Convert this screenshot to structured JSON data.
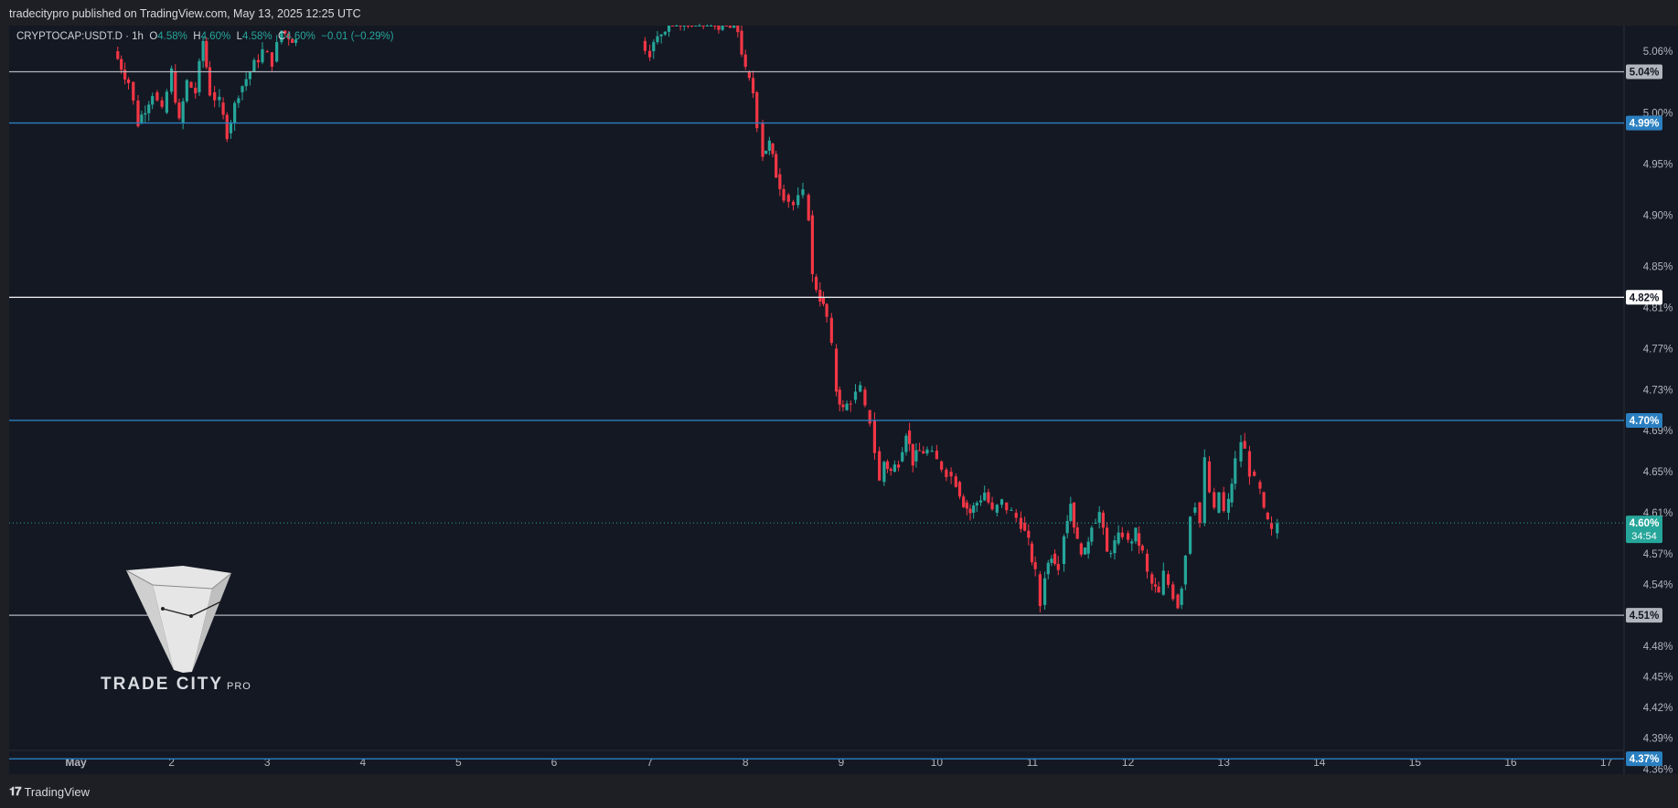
{
  "header": {
    "published": "tradecitypro published on TradingView.com, May 13, 2025 12:25 UTC"
  },
  "symbol_bar": {
    "symbol": "CRYPTOCAP:USDT.D",
    "interval": "1h",
    "o_label": "O",
    "o_value": "4.58%",
    "h_label": "H",
    "h_value": "4.60%",
    "l_label": "L",
    "l_value": "4.58%",
    "c_label": "C",
    "c_value": "4.60%",
    "change": "−0.01 (−0.29%)"
  },
  "watermark": {
    "name": "TRADE CITY",
    "suffix": "PRO"
  },
  "footer": {
    "brand": "TradingView"
  },
  "colors": {
    "background": "#141823",
    "up": "#26a69a",
    "down": "#f23645",
    "blue_line": "#2a7fc0",
    "white_line": "#e6e6e6",
    "gray_line": "#b2b5be"
  },
  "chart_data": {
    "type": "candlestick",
    "ylim": [
      4.355,
      5.085
    ],
    "y_ticks": [
      {
        "v": 5.06,
        "label": "5.06%"
      },
      {
        "v": 5.0,
        "label": "5.00%"
      },
      {
        "v": 4.95,
        "label": "4.95%"
      },
      {
        "v": 4.9,
        "label": "4.90%"
      },
      {
        "v": 4.85,
        "label": "4.85%"
      },
      {
        "v": 4.81,
        "label": "4.81%"
      },
      {
        "v": 4.77,
        "label": "4.77%"
      },
      {
        "v": 4.73,
        "label": "4.73%"
      },
      {
        "v": 4.69,
        "label": "4.69%"
      },
      {
        "v": 4.65,
        "label": "4.65%"
      },
      {
        "v": 4.61,
        "label": "4.61%"
      },
      {
        "v": 4.57,
        "label": "4.57%"
      },
      {
        "v": 4.54,
        "label": "4.54%"
      },
      {
        "v": 4.48,
        "label": "4.48%"
      },
      {
        "v": 4.45,
        "label": "4.45%"
      },
      {
        "v": 4.42,
        "label": "4.42%"
      },
      {
        "v": 4.39,
        "label": "4.39%"
      },
      {
        "v": 4.36,
        "label": "4.36%"
      }
    ],
    "x_ticks": [
      "May",
      "2",
      "3",
      "4",
      "5",
      "6",
      "7",
      "8",
      "9",
      "10",
      "11",
      "12",
      "13",
      "14",
      "15",
      "16",
      "17"
    ],
    "horizontal_levels": [
      {
        "value": 5.04,
        "label": "5.04%",
        "style": "gray"
      },
      {
        "value": 4.99,
        "label": "4.99%",
        "style": "blue"
      },
      {
        "value": 4.82,
        "label": "4.82%",
        "style": "white"
      },
      {
        "value": 4.7,
        "label": "4.70%",
        "style": "blue"
      },
      {
        "value": 4.51,
        "label": "4.51%",
        "style": "gray"
      },
      {
        "value": 4.37,
        "label": "4.37%",
        "style": "blue"
      }
    ],
    "last_price": {
      "value": 4.6,
      "label": "4.60%",
      "countdown": "34:54"
    },
    "path": [
      [
        0.4,
        5.06
      ],
      [
        0.55,
        5.03
      ],
      [
        0.65,
        4.99
      ],
      [
        0.8,
        5.02
      ],
      [
        0.9,
        5.0
      ],
      [
        1.0,
        5.04
      ],
      [
        1.08,
        4.99
      ],
      [
        1.16,
        5.03
      ],
      [
        1.25,
        5.02
      ],
      [
        1.33,
        5.07
      ],
      [
        1.4,
        5.02
      ],
      [
        1.5,
        5.01
      ],
      [
        1.58,
        4.98
      ],
      [
        1.7,
        5.02
      ],
      [
        1.82,
        5.04
      ],
      [
        1.95,
        5.06
      ],
      [
        2.05,
        5.05
      ],
      [
        2.15,
        5.08
      ],
      [
        2.3,
        5.07
      ],
      [
        5.9,
        5.07
      ],
      [
        6.0,
        5.06
      ],
      [
        6.2,
        5.09
      ],
      [
        6.6,
        5.09
      ],
      [
        6.92,
        5.08
      ],
      [
        7.0,
        5.04
      ],
      [
        7.08,
        5.02
      ],
      [
        7.12,
        4.99
      ],
      [
        7.18,
        4.96
      ],
      [
        7.25,
        4.97
      ],
      [
        7.32,
        4.94
      ],
      [
        7.4,
        4.92
      ],
      [
        7.5,
        4.91
      ],
      [
        7.6,
        4.92
      ],
      [
        7.66,
        4.9
      ],
      [
        7.7,
        4.84
      ],
      [
        7.78,
        4.82
      ],
      [
        7.85,
        4.8
      ],
      [
        7.9,
        4.77
      ],
      [
        7.95,
        4.73
      ],
      [
        8.02,
        4.71
      ],
      [
        8.1,
        4.72
      ],
      [
        8.2,
        4.73
      ],
      [
        8.25,
        4.71
      ],
      [
        8.3,
        4.7
      ],
      [
        8.35,
        4.67
      ],
      [
        8.4,
        4.64
      ],
      [
        8.45,
        4.66
      ],
      [
        8.52,
        4.65
      ],
      [
        8.6,
        4.66
      ],
      [
        8.68,
        4.69
      ],
      [
        8.75,
        4.66
      ],
      [
        8.82,
        4.67
      ],
      [
        8.9,
        4.67
      ],
      [
        9.0,
        4.66
      ],
      [
        9.1,
        4.65
      ],
      [
        9.2,
        4.64
      ],
      [
        9.28,
        4.62
      ],
      [
        9.35,
        4.61
      ],
      [
        9.42,
        4.62
      ],
      [
        9.5,
        4.63
      ],
      [
        9.58,
        4.61
      ],
      [
        9.68,
        4.62
      ],
      [
        9.78,
        4.61
      ],
      [
        9.88,
        4.6
      ],
      [
        9.96,
        4.58
      ],
      [
        10.03,
        4.55
      ],
      [
        10.08,
        4.52
      ],
      [
        10.13,
        4.55
      ],
      [
        10.2,
        4.57
      ],
      [
        10.27,
        4.56
      ],
      [
        10.33,
        4.59
      ],
      [
        10.4,
        4.62
      ],
      [
        10.47,
        4.58
      ],
      [
        10.55,
        4.57
      ],
      [
        10.62,
        4.6
      ],
      [
        10.7,
        4.61
      ],
      [
        10.78,
        4.57
      ],
      [
        10.86,
        4.58
      ],
      [
        10.94,
        4.59
      ],
      [
        11.0,
        4.58
      ],
      [
        11.08,
        4.59
      ],
      [
        11.15,
        4.57
      ],
      [
        11.2,
        4.55
      ],
      [
        11.25,
        4.54
      ],
      [
        11.32,
        4.53
      ],
      [
        11.37,
        4.55
      ],
      [
        11.42,
        4.54
      ],
      [
        11.47,
        4.53
      ],
      [
        11.52,
        4.52
      ],
      [
        11.56,
        4.54
      ],
      [
        11.6,
        4.57
      ],
      [
        11.65,
        4.61
      ],
      [
        11.7,
        4.62
      ],
      [
        11.75,
        4.6
      ],
      [
        11.8,
        4.66
      ],
      [
        11.85,
        4.63
      ],
      [
        11.9,
        4.61
      ],
      [
        11.95,
        4.63
      ],
      [
        12.0,
        4.61
      ],
      [
        12.05,
        4.62
      ],
      [
        12.12,
        4.66
      ],
      [
        12.18,
        4.68
      ],
      [
        12.22,
        4.67
      ],
      [
        12.27,
        4.65
      ],
      [
        12.32,
        4.64
      ],
      [
        12.38,
        4.63
      ],
      [
        12.42,
        4.61
      ],
      [
        12.46,
        4.6
      ],
      [
        12.5,
        4.59
      ],
      [
        12.56,
        4.6
      ]
    ]
  }
}
